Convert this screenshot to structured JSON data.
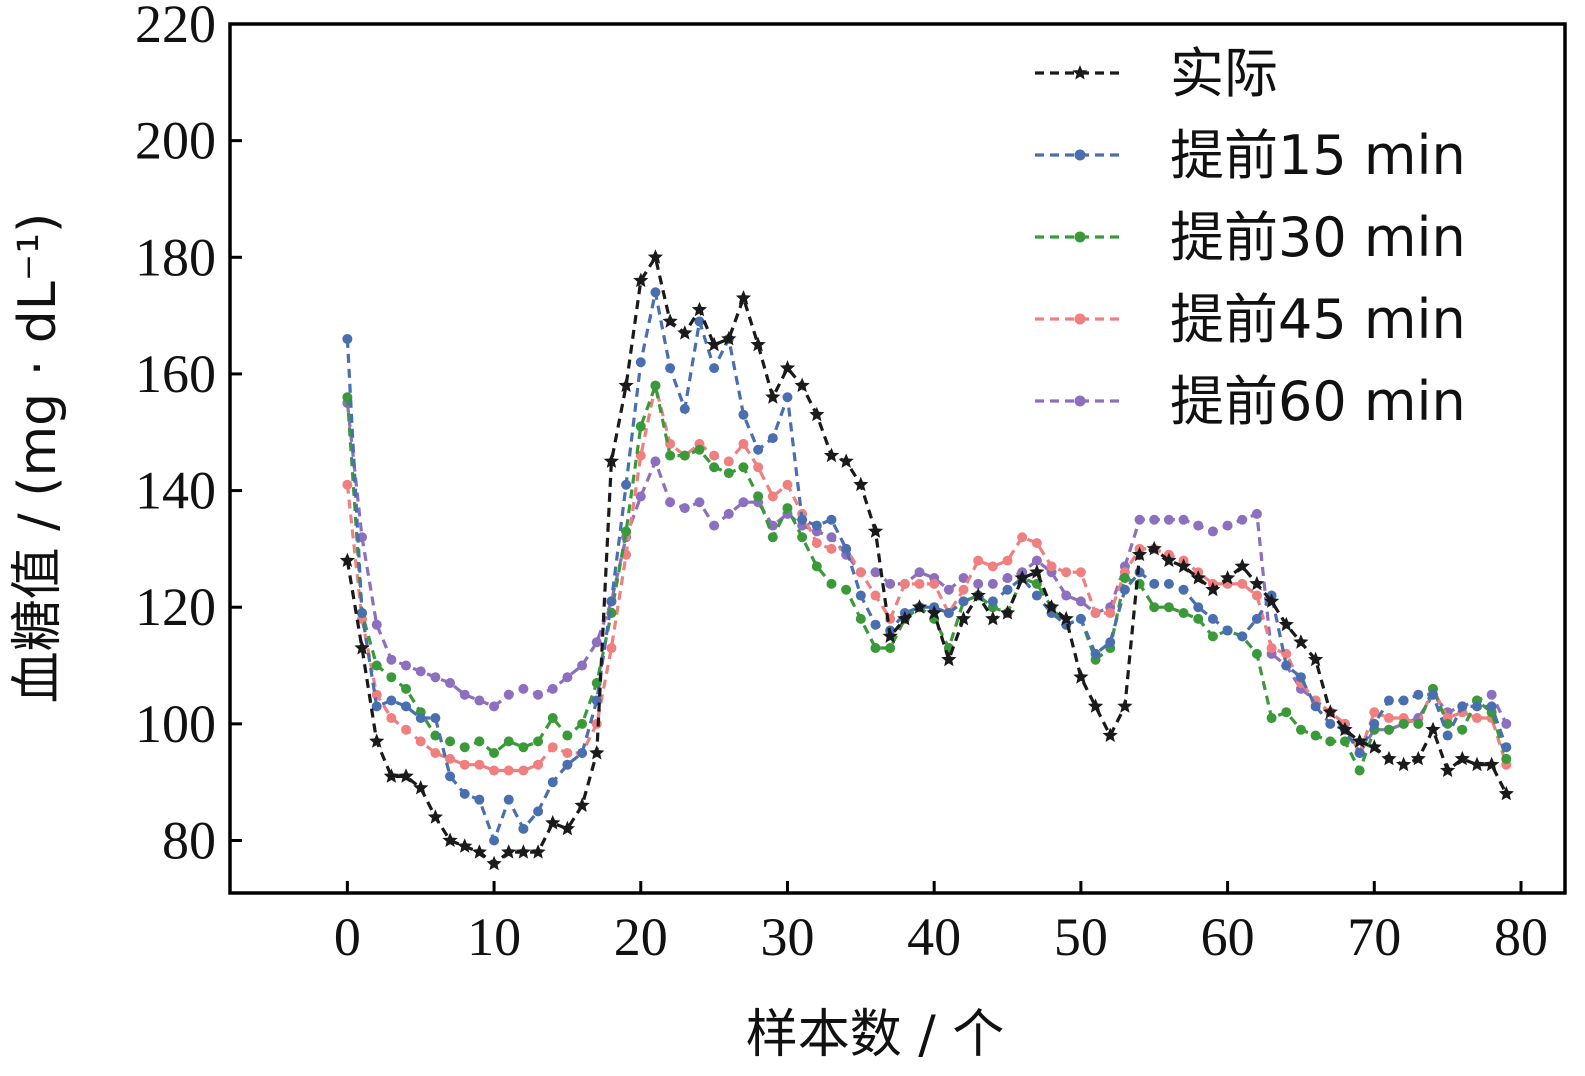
{
  "chart_data": {
    "type": "line",
    "title": "",
    "xlabel": "样本数 / 个",
    "ylabel": "血糖值 / (mg · dL⁻¹)",
    "xlim": [
      -8,
      83
    ],
    "ylim": [
      71,
      220
    ],
    "xticks": [
      0,
      10,
      20,
      30,
      40,
      50,
      60,
      70,
      80
    ],
    "yticks": [
      80,
      100,
      120,
      140,
      160,
      180,
      200,
      220
    ],
    "grid": false,
    "legend_position": "top-right",
    "series": [
      {
        "name": "实际",
        "color": "#1a1a1a",
        "marker": "star",
        "x": [
          0,
          1,
          2,
          3,
          4,
          5,
          6,
          7,
          8,
          9,
          10,
          11,
          12,
          13,
          14,
          15,
          16,
          17,
          18,
          19,
          20,
          21,
          22,
          23,
          24,
          25,
          26,
          27,
          28,
          29,
          30,
          31,
          32,
          33,
          34,
          35,
          36,
          37,
          38,
          39,
          40,
          41,
          42,
          43,
          44,
          45,
          46,
          47,
          48,
          49,
          50,
          51,
          52,
          53,
          54,
          55,
          56,
          57,
          58,
          59,
          60,
          61,
          62,
          63,
          64,
          65,
          66,
          67,
          68,
          69,
          70,
          71,
          72,
          73,
          74,
          75,
          76,
          77,
          78,
          79
        ],
        "values": [
          128,
          113,
          97,
          91,
          91,
          89,
          84,
          80,
          79,
          78,
          76,
          78,
          78,
          78,
          83,
          82,
          86,
          95,
          145,
          158,
          176,
          180,
          169,
          167,
          171,
          165,
          166,
          173,
          165,
          156,
          161,
          158,
          153,
          146,
          145,
          141,
          133,
          115,
          118,
          120,
          119,
          111,
          118,
          122,
          118,
          119,
          125,
          126,
          120,
          118,
          108,
          103,
          98,
          103,
          129,
          130,
          128,
          127,
          125,
          123,
          125,
          127,
          124,
          121,
          117,
          114,
          111,
          102,
          99,
          97,
          96,
          94,
          93,
          94,
          99,
          92,
          94,
          93,
          93,
          88
        ]
      },
      {
        "name": "提前15 min",
        "color": "#4a6fb0",
        "marker": "circle",
        "x": [
          0,
          1,
          2,
          3,
          4,
          5,
          6,
          7,
          8,
          9,
          10,
          11,
          12,
          13,
          14,
          15,
          16,
          17,
          18,
          19,
          20,
          21,
          22,
          23,
          24,
          25,
          26,
          27,
          28,
          29,
          30,
          31,
          32,
          33,
          34,
          35,
          36,
          37,
          38,
          39,
          40,
          41,
          42,
          43,
          44,
          45,
          46,
          47,
          48,
          49,
          50,
          51,
          52,
          53,
          54,
          55,
          56,
          57,
          58,
          59,
          60,
          61,
          62,
          63,
          64,
          65,
          66,
          67,
          68,
          69,
          70,
          71,
          72,
          73,
          74,
          75,
          76,
          77,
          78,
          79
        ],
        "values": [
          166,
          119,
          103,
          104,
          103,
          101,
          101,
          91,
          88,
          87,
          80,
          87,
          82,
          85,
          90,
          93,
          95,
          104,
          121,
          141,
          162,
          174,
          161,
          154,
          169,
          161,
          166,
          153,
          147,
          149,
          156,
          135,
          134,
          135,
          130,
          122,
          117,
          116,
          119,
          120,
          120,
          119,
          121,
          122,
          121,
          123,
          125,
          122,
          119,
          117,
          118,
          112,
          114,
          123,
          126,
          124,
          124,
          123,
          120,
          118,
          116,
          115,
          118,
          122,
          110,
          108,
          103,
          100,
          99,
          95,
          100,
          104,
          104,
          105,
          105,
          98,
          103,
          103,
          103,
          96
        ]
      },
      {
        "name": "提前30 min",
        "color": "#3a9a3a",
        "marker": "circle",
        "x": [
          0,
          1,
          2,
          3,
          4,
          5,
          6,
          7,
          8,
          9,
          10,
          11,
          12,
          13,
          14,
          15,
          16,
          17,
          18,
          19,
          20,
          21,
          22,
          23,
          24,
          25,
          26,
          27,
          28,
          29,
          30,
          31,
          32,
          33,
          34,
          35,
          36,
          37,
          38,
          39,
          40,
          41,
          42,
          43,
          44,
          45,
          46,
          47,
          48,
          49,
          50,
          51,
          52,
          53,
          54,
          55,
          56,
          57,
          58,
          59,
          60,
          61,
          62,
          63,
          64,
          65,
          66,
          67,
          68,
          69,
          70,
          71,
          72,
          73,
          74,
          75,
          76,
          77,
          78,
          79
        ],
        "values": [
          156,
          119,
          110,
          108,
          106,
          102,
          98,
          97,
          96,
          97,
          95,
          97,
          96,
          97,
          101,
          98,
          100,
          107,
          119,
          133,
          151,
          158,
          146,
          146,
          147,
          144,
          143,
          144,
          139,
          132,
          137,
          132,
          127,
          124,
          123,
          118,
          113,
          113,
          118,
          120,
          118,
          113,
          121,
          122,
          120,
          119,
          125,
          124,
          120,
          117,
          118,
          111,
          113,
          125,
          124,
          120,
          120,
          119,
          118,
          115,
          116,
          115,
          112,
          101,
          102,
          99,
          98,
          97,
          97,
          92,
          99,
          99,
          100,
          100,
          106,
          100,
          99,
          104,
          102,
          94
        ]
      },
      {
        "name": "提前45 min",
        "color": "#f07f7f",
        "marker": "circle",
        "x": [
          0,
          1,
          2,
          3,
          4,
          5,
          6,
          7,
          8,
          9,
          10,
          11,
          12,
          13,
          14,
          15,
          16,
          17,
          18,
          19,
          20,
          21,
          22,
          23,
          24,
          25,
          26,
          27,
          28,
          29,
          30,
          31,
          32,
          33,
          34,
          35,
          36,
          37,
          38,
          39,
          40,
          41,
          42,
          43,
          44,
          45,
          46,
          47,
          48,
          49,
          50,
          51,
          52,
          53,
          54,
          55,
          56,
          57,
          58,
          59,
          60,
          61,
          62,
          63,
          64,
          65,
          66,
          67,
          68,
          69,
          70,
          71,
          72,
          73,
          74,
          75,
          76,
          77,
          78,
          79
        ],
        "values": [
          141,
          118,
          105,
          101,
          99,
          97,
          95,
          94,
          93,
          93,
          92,
          92,
          92,
          93,
          96,
          95,
          95,
          100,
          113,
          129,
          146,
          158,
          148,
          146,
          148,
          146,
          145,
          148,
          144,
          139,
          141,
          136,
          131,
          130,
          130,
          126,
          122,
          118,
          124,
          124,
          124,
          119,
          123,
          128,
          127,
          128,
          132,
          131,
          127,
          126,
          126,
          119,
          119,
          126,
          130,
          130,
          129,
          128,
          126,
          124,
          124,
          124,
          122,
          113,
          112,
          107,
          104,
          102,
          100,
          95,
          102,
          101,
          101,
          100,
          106,
          101,
          102,
          101,
          101,
          93
        ]
      },
      {
        "name": "提前60 min",
        "color": "#8c6fbf",
        "marker": "circle",
        "x": [
          0,
          1,
          2,
          3,
          4,
          5,
          6,
          7,
          8,
          9,
          10,
          11,
          12,
          13,
          14,
          15,
          16,
          17,
          18,
          19,
          20,
          21,
          22,
          23,
          24,
          25,
          26,
          27,
          28,
          29,
          30,
          31,
          32,
          33,
          34,
          35,
          36,
          37,
          38,
          39,
          40,
          41,
          42,
          43,
          44,
          45,
          46,
          47,
          48,
          49,
          50,
          51,
          52,
          53,
          54,
          55,
          56,
          57,
          58,
          59,
          60,
          61,
          62,
          63,
          64,
          65,
          66,
          67,
          68,
          69,
          70,
          71,
          72,
          73,
          74,
          75,
          76,
          77,
          78,
          79
        ],
        "values": [
          155,
          132,
          117,
          111,
          110,
          109,
          108,
          107,
          105,
          104,
          103,
          105,
          106,
          105,
          106,
          108,
          110,
          114,
          121,
          132,
          139,
          145,
          138,
          137,
          138,
          134,
          136,
          138,
          138,
          134,
          136,
          134,
          133,
          132,
          129,
          126,
          126,
          124,
          124,
          126,
          125,
          123,
          125,
          124,
          124,
          125,
          126,
          128,
          126,
          122,
          121,
          119,
          120,
          127,
          135,
          135,
          135,
          135,
          134,
          133,
          134,
          135,
          136,
          112,
          110,
          106,
          104,
          102,
          100,
          95,
          99,
          99,
          100,
          101,
          105,
          102,
          103,
          104,
          105,
          100
        ]
      }
    ]
  }
}
